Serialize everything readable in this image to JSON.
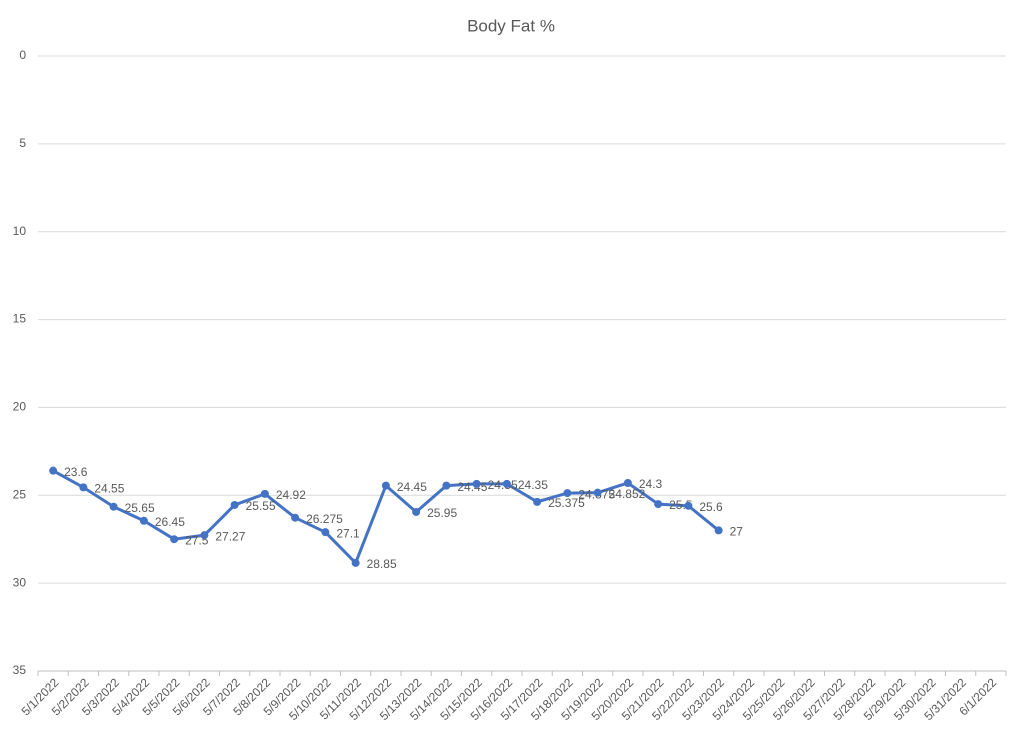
{
  "chart_data": {
    "type": "line",
    "title": "Body Fat %",
    "categories": [
      "5/1/2022",
      "5/2/2022",
      "5/3/2022",
      "5/4/2022",
      "5/5/2022",
      "5/6/2022",
      "5/7/2022",
      "5/8/2022",
      "5/9/2022",
      "5/10/2022",
      "5/11/2022",
      "5/12/2022",
      "5/13/2022",
      "5/14/2022",
      "5/15/2022",
      "5/16/2022",
      "5/17/2022",
      "5/18/2022",
      "5/19/2022",
      "5/20/2022",
      "5/21/2022",
      "5/22/2022",
      "5/23/2022",
      "5/24/2022",
      "5/25/2022",
      "5/26/2022",
      "5/27/2022",
      "5/28/2022",
      "5/29/2022",
      "5/30/2022",
      "5/31/2022",
      "6/1/2022"
    ],
    "series": [
      {
        "name": "Body Fat %",
        "color": "#4472c4",
        "values": [
          23.6,
          24.55,
          25.65,
          26.45,
          27.5,
          27.27,
          25.55,
          24.92,
          26.275,
          27.1,
          28.85,
          24.45,
          25.95,
          24.45,
          24.35,
          24.35,
          25.375,
          24.875,
          24.852,
          24.3,
          25.5,
          25.6,
          27,
          null,
          null,
          null,
          null,
          null,
          null,
          null,
          null,
          null
        ]
      }
    ],
    "ylim": [
      0,
      35
    ],
    "yticks": [
      0,
      5,
      10,
      15,
      20,
      25,
      30,
      35
    ],
    "y_reversed": true,
    "grid": true
  }
}
